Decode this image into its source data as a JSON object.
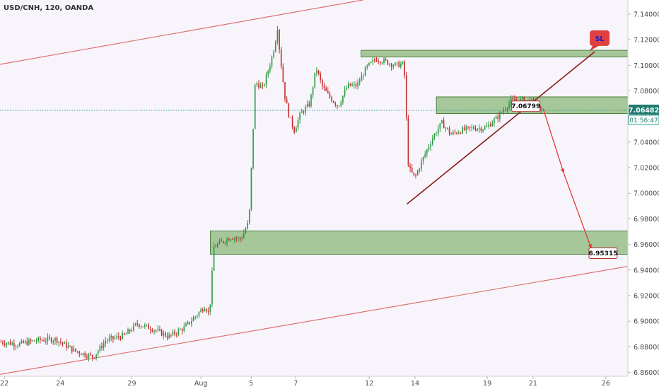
{
  "chart_data": {
    "type": "candlestick",
    "title": "USD/CNH, 120, OANDA",
    "x_ticks": [
      "22",
      "24",
      "29",
      "Aug",
      "5",
      "7",
      "12",
      "14",
      "19",
      "21",
      "26"
    ],
    "y_ticks": [
      "7.14000",
      "7.12000",
      "7.10000",
      "7.08000",
      "7.06000",
      "7.04000",
      "7.02000",
      "7.00000",
      "6.98000",
      "6.96000",
      "6.94000",
      "6.92000",
      "6.90000",
      "6.88000",
      "6.86000"
    ],
    "ylim": [
      6.857,
      7.151
    ],
    "xlim": [
      0,
      100
    ],
    "current_price": {
      "value": 7.06482,
      "label": "7.06482",
      "countdown": "01:56:47"
    },
    "callouts": [
      {
        "label": "7.06799",
        "x": 81.5,
        "y": 7.06799
      },
      {
        "label": "6.95315",
        "x": 93.8,
        "y": 6.95315
      }
    ],
    "sl_badge": {
      "label": "SL",
      "x": 95.5,
      "y": 7.1212
    },
    "zones": [
      {
        "name": "upper-resistance-zone",
        "x0": 57.5,
        "x1": 100,
        "y0": 7.1065,
        "y1": 7.1117
      },
      {
        "name": "middle-resistance-zone",
        "x0": 69.5,
        "x1": 100,
        "y0": 7.0623,
        "y1": 7.0753
      },
      {
        "name": "target-support-zone",
        "x0": 33.5,
        "x1": 100,
        "y0": 6.9523,
        "y1": 6.9705
      }
    ],
    "channel_lines": [
      {
        "name": "channel-top-line",
        "points": [
          [
            0,
            7.1007
          ],
          [
            57.8,
            7.151
          ]
        ]
      },
      {
        "name": "channel-bottom-line",
        "points": [
          [
            0,
            6.8585
          ],
          [
            100,
            6.9429
          ]
        ]
      }
    ],
    "trendline": {
      "points": [
        [
          64.8,
          6.9915
        ],
        [
          94.7,
          7.1105
        ]
      ]
    },
    "projection": [
      [
        86.5,
        7.0662
      ],
      [
        89.8,
        7.0155
      ],
      [
        94.2,
        6.9565
      ]
    ],
    "support_path": [
      [
        0,
        6.884
      ],
      [
        3,
        6.882
      ],
      [
        6,
        6.885
      ],
      [
        9,
        6.886
      ],
      [
        12,
        6.877
      ],
      [
        15,
        6.872
      ],
      [
        17,
        6.885
      ],
      [
        20,
        6.889
      ],
      [
        22,
        6.898
      ],
      [
        24.5,
        6.894
      ],
      [
        27,
        6.888
      ],
      [
        29.5,
        6.895
      ],
      [
        31.5,
        6.905
      ],
      [
        32.8,
        6.912
      ],
      [
        33.5,
        6.905
      ],
      [
        34.2,
        6.958
      ],
      [
        35.5,
        6.962
      ],
      [
        37,
        6.966
      ],
      [
        38.5,
        6.964
      ],
      [
        39.8,
        6.978
      ],
      [
        40.8,
        7.087
      ],
      [
        42,
        7.082
      ],
      [
        43.3,
        7.103
      ],
      [
        44,
        7.118
      ],
      [
        44.3,
        7.132
      ],
      [
        44.7,
        7.11
      ],
      [
        45.5,
        7.076
      ],
      [
        46.2,
        7.06
      ],
      [
        47,
        7.049
      ],
      [
        48,
        7.062
      ],
      [
        49.5,
        7.07
      ],
      [
        50.5,
        7.098
      ],
      [
        51.5,
        7.083
      ],
      [
        52.5,
        7.076
      ],
      [
        54,
        7.068
      ],
      [
        55.5,
        7.084
      ],
      [
        57,
        7.084
      ],
      [
        58.5,
        7.098
      ],
      [
        60,
        7.105
      ],
      [
        61.5,
        7.103
      ],
      [
        63,
        7.1
      ],
      [
        64.5,
        7.101
      ],
      [
        65.2,
        7.02
      ],
      [
        66.2,
        7.012
      ],
      [
        67.5,
        7.027
      ],
      [
        69,
        7.043
      ],
      [
        70.5,
        7.055
      ],
      [
        72,
        7.046
      ],
      [
        73.5,
        7.049
      ],
      [
        75.5,
        7.051
      ],
      [
        77.5,
        7.051
      ],
      [
        79.5,
        7.06
      ],
      [
        81.5,
        7.072
      ],
      [
        83.5,
        7.073
      ],
      [
        85.5,
        7.07
      ],
      [
        86.3,
        7.063
      ]
    ],
    "candle_colors": {
      "up": "#2e9a44",
      "down": "#c92e2e"
    },
    "grid": false
  }
}
